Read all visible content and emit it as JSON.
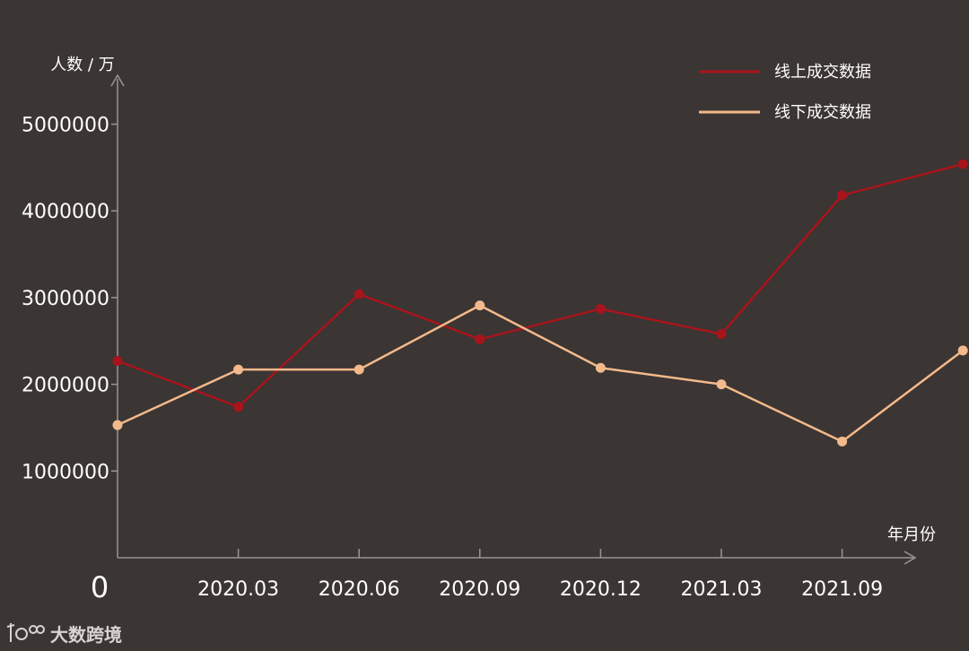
{
  "chart_data": {
    "type": "line",
    "ylabel": "人数 / 万",
    "xlabel": "年月份",
    "zero_label": "0",
    "ylim": [
      0,
      5500000
    ],
    "yticks": [
      {
        "value": 1000000,
        "label": "1000000"
      },
      {
        "value": 2000000,
        "label": "2000000"
      },
      {
        "value": 3000000,
        "label": "3000000"
      },
      {
        "value": 4000000,
        "label": "4000000"
      },
      {
        "value": 5000000,
        "label": "5000000"
      }
    ],
    "x": [
      "",
      "2020.03",
      "2020.06",
      "2020.09",
      "2020.12",
      "2021.03",
      "",
      "2021.09"
    ],
    "xtick_labels": [
      "2020.03",
      "2020.06",
      "2020.09",
      "2020.12",
      "2021.03",
      "2021.09"
    ],
    "series": [
      {
        "name": "线上成交数据",
        "color": "#a8141b",
        "values": [
          2270000,
          1740000,
          3040000,
          2520000,
          2870000,
          2580000,
          4180000,
          4540000
        ]
      },
      {
        "name": "线下成交数据",
        "color": "#f3b98a",
        "values": [
          1530000,
          2170000,
          2170000,
          2910000,
          2190000,
          2000000,
          1340000,
          2390000
        ]
      }
    ],
    "legend_position": "top-right",
    "grid": false
  },
  "watermark": {
    "text": "大数跨境",
    "icon": "tdk-logo-icon"
  }
}
